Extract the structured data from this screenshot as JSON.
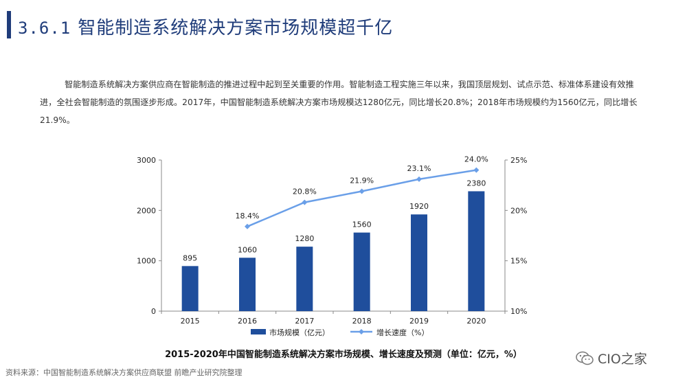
{
  "header": {
    "section_number": "3.6.1",
    "title": "智能制造系统解决方案市场规模超千亿"
  },
  "intro": {
    "text": "智能制造系统解决方案供应商在智能制造的推进过程中起到至关重要的作用。智能制造工程实施三年以来，我国顶层规划、试点示范、标准体系建设有效推进，全社会智能制造的氛围逐步形成。2017年，中国智能制造系统解决方案市场规模达1280亿元，同比增长20.8%；2018年市场规模约为1560亿元，同比增长21.9%。"
  },
  "chart_data": {
    "type": "bar",
    "title": "2015-2020年中国智能制造系统解决方案市场规模、增长速度及预测（单位：亿元，%）",
    "categories": [
      "2015",
      "2016",
      "2017",
      "2018",
      "2019",
      "2020"
    ],
    "series": [
      {
        "name": "市场规模（亿元）",
        "type": "bar",
        "axis": "left",
        "values": [
          895,
          1060,
          1280,
          1560,
          1920,
          2380
        ],
        "labels": [
          "895",
          "1060",
          "1280",
          "1560",
          "1920",
          "2380"
        ],
        "color": "#1f4e9c"
      },
      {
        "name": "增长速度（%）",
        "type": "line",
        "axis": "right",
        "values": [
          null,
          18.4,
          20.8,
          21.9,
          23.1,
          24.0
        ],
        "labels": [
          "",
          "18.4%",
          "20.8%",
          "21.9%",
          "23.1%",
          "24.0%"
        ],
        "color": "#6a9fe8"
      }
    ],
    "y_left": {
      "ylim": [
        0,
        3000
      ],
      "ticks": [
        0,
        1000,
        2000,
        3000
      ],
      "tick_labels": [
        "0",
        "1000",
        "2000",
        "3000"
      ]
    },
    "y_right": {
      "ylim": [
        10,
        25
      ],
      "ticks": [
        10,
        15,
        20,
        25
      ],
      "tick_labels": [
        "10%",
        "15%",
        "20%",
        "25%"
      ]
    },
    "grid": false,
    "legend_position": "bottom"
  },
  "footer": {
    "source": "资料来源：中国智能制造系统解决方案供应商联盟 前瞻产业研究院整理",
    "watermark": "CIO之家"
  }
}
